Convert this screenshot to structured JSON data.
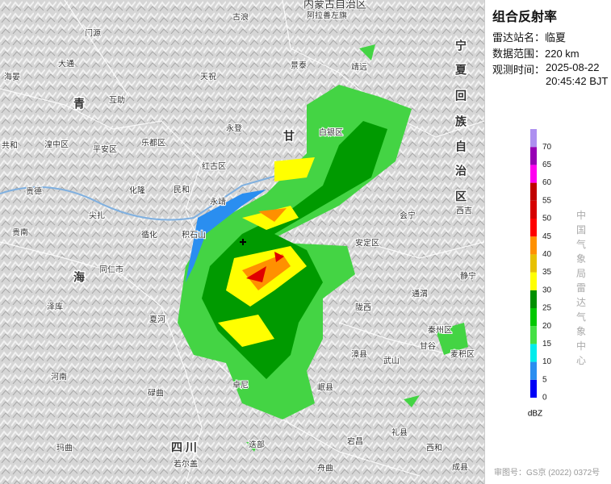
{
  "panel": {
    "title": "组合反射率",
    "station": "雷达站名：临夏",
    "range": "数据范围：220 km",
    "time_label": "观测时间：",
    "date": "2025-08-22",
    "time": "20:45:42 BJT"
  },
  "legend": {
    "levels": [
      0,
      5,
      10,
      15,
      20,
      25,
      30,
      35,
      40,
      45,
      50,
      55,
      60,
      65,
      70
    ],
    "colors": [
      "#0000f6",
      "#2a8ef0",
      "#00ecec",
      "#44e044",
      "#00c800",
      "#009000",
      "#ffff00",
      "#e7c000",
      "#ff9000",
      "#ff0000",
      "#d60000",
      "#c00000",
      "#ff00f0",
      "#9600b4",
      "#ad90f0"
    ],
    "unit": "dBZ",
    "agency": "中国气象局雷达气象中心"
  },
  "map": {
    "places": [
      "内蒙古自治区",
      "古浪",
      "阿拉善左旗",
      "门源",
      "景泰",
      "靖远",
      "大通",
      "海晏",
      "天祝",
      "互助",
      "永登",
      "湟中区",
      "共和",
      "平安区",
      "乐都区",
      "白银区",
      "红古区",
      "民和",
      "化隆",
      "贵德",
      "尖扎",
      "永靖",
      "贵南",
      "循化",
      "积石山",
      "会宁",
      "西吉",
      "安定区",
      "同仁市",
      "泽库",
      "通渭",
      "陇西",
      "静宁",
      "夏河",
      "甘谷",
      "麦积区",
      "漳县",
      "武山",
      "河南",
      "碌曲",
      "卓尼",
      "岷县",
      "秦州区",
      "玛曲",
      "若尔盖",
      "迭部",
      "宕昌",
      "礼县",
      "西和",
      "舟曲",
      "成县"
    ],
    "big_labels": [
      "青",
      "海",
      "甘",
      "宁",
      "夏",
      "回",
      "族",
      "自",
      "治",
      "区",
      "四 川"
    ]
  },
  "footer": "审图号：GS京 (2022) 0372号"
}
